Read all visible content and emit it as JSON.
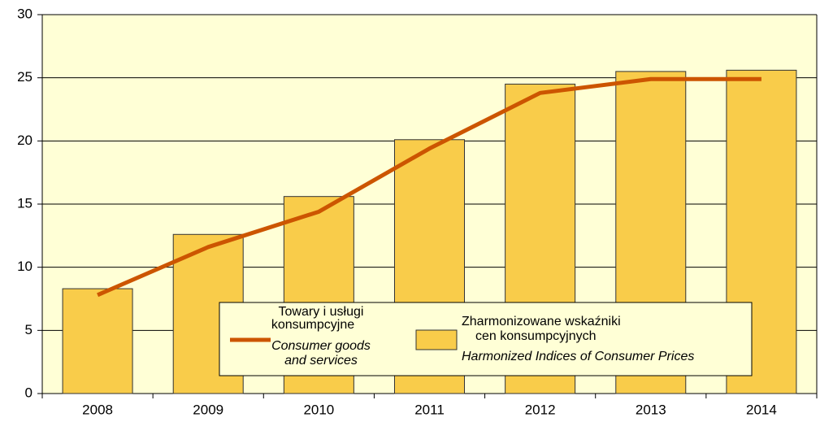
{
  "chart_data": {
    "type": "bar",
    "categories": [
      "2008",
      "2009",
      "2010",
      "2011",
      "2012",
      "2013",
      "2014"
    ],
    "series": [
      {
        "name": [
          "Zharmonizowane wskaźniki",
          "cen konsumpcyjnych",
          "Harmonized Indices of Consumer Prices"
        ],
        "type": "bar",
        "color": "#f9cc4a",
        "values": [
          8.3,
          12.6,
          15.6,
          20.1,
          24.5,
          25.5,
          25.6
        ]
      },
      {
        "name": [
          "Towary i usługi",
          "konsumpcyjne",
          "Consumer goods",
          "and services"
        ],
        "type": "line",
        "color": "#cc5500",
        "values": [
          7.8,
          11.6,
          14.4,
          19.4,
          23.8,
          24.9,
          24.9
        ]
      }
    ],
    "ylim": [
      0,
      30
    ],
    "yticks": [
      0,
      5,
      10,
      15,
      20,
      25,
      30
    ],
    "grid": true
  }
}
